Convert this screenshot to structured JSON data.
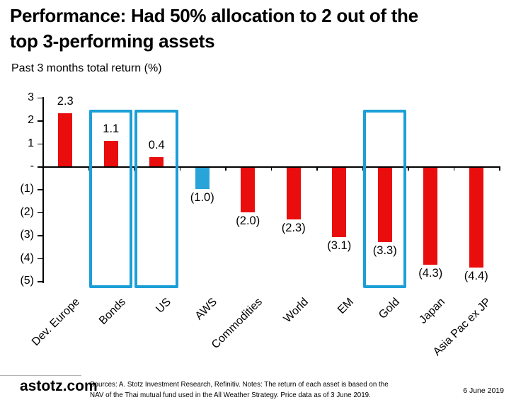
{
  "header": {
    "title_line1": "Performance: Had 50% allocation to 2 out of the",
    "title_line2": "top 3-performing assets",
    "subtitle": "Past 3 months total return (%)"
  },
  "chart_data": {
    "type": "bar",
    "title": "Performance: Had 50% allocation to 2 out of the top 3-performing assets",
    "subtitle": "Past 3 months total return (%)",
    "categories": [
      "Dev. Europe",
      "Bonds",
      "US",
      "AWS",
      "Commodities",
      "World",
      "EM",
      "Gold",
      "Japan",
      "Asia Pac ex JP"
    ],
    "values": [
      2.3,
      1.1,
      0.4,
      -1.0,
      -2.0,
      -2.3,
      -3.1,
      -3.3,
      -4.3,
      -4.4
    ],
    "data_labels": [
      "2.3",
      "1.1",
      "0.4",
      "(1.0)",
      "(2.0)",
      "(2.3)",
      "(3.1)",
      "(3.3)",
      "(4.3)",
      "(4.4)"
    ],
    "bar_colors": [
      "#e90d0d",
      "#e90d0d",
      "#e90d0d",
      "#29a4d9",
      "#e90d0d",
      "#e90d0d",
      "#e90d0d",
      "#e90d0d",
      "#e90d0d",
      "#e90d0d"
    ],
    "highlight_boxes": [
      "Bonds",
      "US",
      "Gold"
    ],
    "highlight_color": "#1c9fd6",
    "y_ticks": [
      {
        "value": 3,
        "label": "3"
      },
      {
        "value": 2,
        "label": "2"
      },
      {
        "value": 1,
        "label": "1"
      },
      {
        "value": 0,
        "label": "-"
      },
      {
        "value": -1,
        "label": "(1)"
      },
      {
        "value": -2,
        "label": "(2)"
      },
      {
        "value": -3,
        "label": "(3)"
      },
      {
        "value": -4,
        "label": "(4)"
      },
      {
        "value": -5,
        "label": "(5)"
      }
    ],
    "ylim": [
      -5.3,
      3
    ],
    "xlabel": "",
    "ylabel": "Past 3 months total return (%)",
    "grid": false,
    "legend": "none"
  },
  "footer": {
    "brand": "astotz.com",
    "sources": "Sources: A. Stotz Investment Research, Refinitiv. Notes: The return of each asset is based on the NAV of the Thai mutual fund used in the All Weather Strategy. Price data as of 3 June 2019.",
    "date": "6 June 2019"
  }
}
